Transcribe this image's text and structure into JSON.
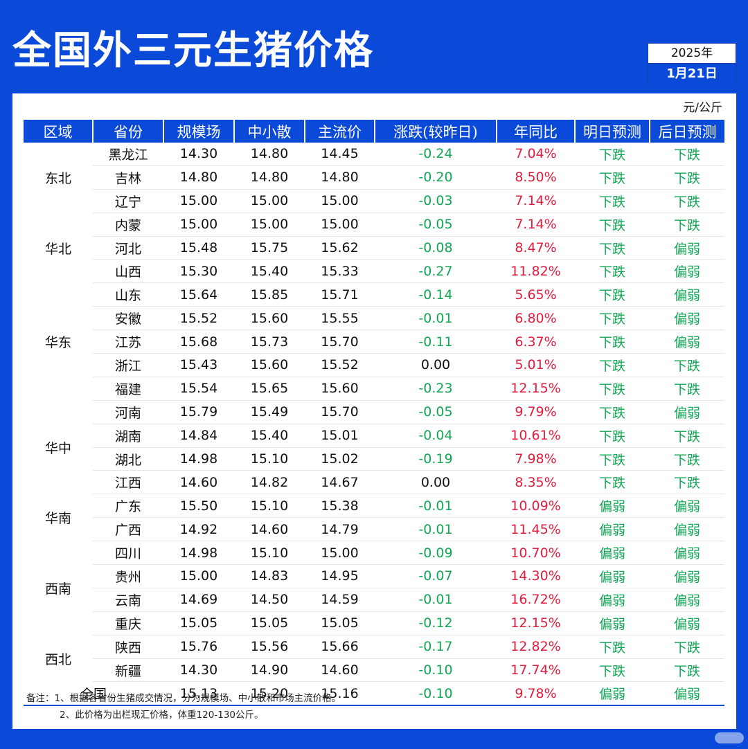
{
  "header": {
    "title": "全国外三元生猪价格",
    "date_year": "2025年",
    "date_day": "1月21日"
  },
  "unit": "元/公斤",
  "columns": [
    "区域",
    "省份",
    "规模场",
    "中小散",
    "主流价",
    "涨跌(较昨日)",
    "年同比",
    "明日预测",
    "后日预测"
  ],
  "rows": [
    {
      "region": "东北",
      "region_span": 3,
      "province": "黑龙江",
      "large": "14.30",
      "small": "14.80",
      "main": "14.45",
      "change": "-0.24",
      "yoy": "7.04%",
      "tomorrow": "下跌",
      "after": "下跌"
    },
    {
      "province": "吉林",
      "large": "14.80",
      "small": "14.80",
      "main": "14.80",
      "change": "-0.20",
      "yoy": "8.50%",
      "tomorrow": "下跌",
      "after": "下跌"
    },
    {
      "province": "辽宁",
      "large": "15.00",
      "small": "15.00",
      "main": "15.00",
      "change": "-0.03",
      "yoy": "7.14%",
      "tomorrow": "下跌",
      "after": "下跌"
    },
    {
      "region": "华北",
      "region_span": 3,
      "province": "内蒙",
      "large": "15.00",
      "small": "15.00",
      "main": "15.00",
      "change": "-0.05",
      "yoy": "7.14%",
      "tomorrow": "下跌",
      "after": "下跌"
    },
    {
      "province": "河北",
      "large": "15.48",
      "small": "15.75",
      "main": "15.62",
      "change": "-0.08",
      "yoy": "8.47%",
      "tomorrow": "下跌",
      "after": "偏弱"
    },
    {
      "province": "山西",
      "large": "15.30",
      "small": "15.40",
      "main": "15.33",
      "change": "-0.27",
      "yoy": "11.82%",
      "tomorrow": "下跌",
      "after": "偏弱"
    },
    {
      "region": "华东",
      "region_span": 5,
      "province": "山东",
      "large": "15.64",
      "small": "15.85",
      "main": "15.71",
      "change": "-0.14",
      "yoy": "5.65%",
      "tomorrow": "下跌",
      "after": "偏弱"
    },
    {
      "province": "安徽",
      "large": "15.52",
      "small": "15.60",
      "main": "15.55",
      "change": "-0.01",
      "yoy": "6.80%",
      "tomorrow": "下跌",
      "after": "偏弱"
    },
    {
      "province": "江苏",
      "large": "15.68",
      "small": "15.73",
      "main": "15.70",
      "change": "-0.11",
      "yoy": "6.37%",
      "tomorrow": "下跌",
      "after": "偏弱"
    },
    {
      "province": "浙江",
      "large": "15.43",
      "small": "15.60",
      "main": "15.52",
      "change": "0.00",
      "yoy": "5.01%",
      "tomorrow": "下跌",
      "after": "下跌"
    },
    {
      "province": "福建",
      "large": "15.54",
      "small": "15.65",
      "main": "15.60",
      "change": "-0.23",
      "yoy": "12.15%",
      "tomorrow": "下跌",
      "after": "下跌"
    },
    {
      "region": "华中",
      "region_span": 4,
      "province": "河南",
      "large": "15.79",
      "small": "15.49",
      "main": "15.70",
      "change": "-0.05",
      "yoy": "9.79%",
      "tomorrow": "下跌",
      "after": "偏弱"
    },
    {
      "province": "湖南",
      "large": "14.84",
      "small": "15.40",
      "main": "15.01",
      "change": "-0.04",
      "yoy": "10.61%",
      "tomorrow": "下跌",
      "after": "下跌"
    },
    {
      "province": "湖北",
      "large": "14.98",
      "small": "15.10",
      "main": "15.02",
      "change": "-0.19",
      "yoy": "7.98%",
      "tomorrow": "下跌",
      "after": "下跌"
    },
    {
      "province": "江西",
      "large": "14.60",
      "small": "14.82",
      "main": "14.67",
      "change": "0.00",
      "yoy": "8.35%",
      "tomorrow": "下跌",
      "after": "下跌"
    },
    {
      "region": "华南",
      "region_span": 2,
      "province": "广东",
      "large": "15.50",
      "small": "15.10",
      "main": "15.38",
      "change": "-0.01",
      "yoy": "10.09%",
      "tomorrow": "偏弱",
      "after": "偏弱"
    },
    {
      "province": "广西",
      "large": "14.92",
      "small": "14.60",
      "main": "14.79",
      "change": "-0.01",
      "yoy": "11.45%",
      "tomorrow": "偏弱",
      "after": "偏弱"
    },
    {
      "region": "西南",
      "region_span": 4,
      "province": "四川",
      "large": "14.98",
      "small": "15.10",
      "main": "15.00",
      "change": "-0.09",
      "yoy": "10.70%",
      "tomorrow": "偏弱",
      "after": "偏弱"
    },
    {
      "province": "贵州",
      "large": "15.00",
      "small": "14.83",
      "main": "14.95",
      "change": "-0.07",
      "yoy": "14.30%",
      "tomorrow": "偏弱",
      "after": "偏弱"
    },
    {
      "province": "云南",
      "large": "14.69",
      "small": "14.50",
      "main": "14.59",
      "change": "-0.01",
      "yoy": "16.72%",
      "tomorrow": "偏弱",
      "after": "偏弱"
    },
    {
      "province": "重庆",
      "large": "15.05",
      "small": "15.05",
      "main": "15.05",
      "change": "-0.12",
      "yoy": "12.15%",
      "tomorrow": "偏弱",
      "after": "偏弱"
    },
    {
      "region": "西北",
      "region_span": 2,
      "province": "陕西",
      "large": "15.76",
      "small": "15.56",
      "main": "15.66",
      "change": "-0.17",
      "yoy": "12.82%",
      "tomorrow": "下跌",
      "after": "下跌"
    },
    {
      "province": "新疆",
      "large": "14.30",
      "small": "14.90",
      "main": "14.60",
      "change": "-0.10",
      "yoy": "17.74%",
      "tomorrow": "下跌",
      "after": "下跌"
    }
  ],
  "national": {
    "label": "全国",
    "large": "15.13",
    "small": "15.20",
    "main": "15.16",
    "change": "-0.10",
    "yoy": "9.78%",
    "tomorrow": "偏弱",
    "after": "偏弱"
  },
  "notes": {
    "line1": "备注：1、根据各省份生猪成交情况，分为规模场、中小散和市场主流价格。",
    "line2": "2、此价格为出栏现汇价格，体重120-130公斤。"
  },
  "colors": {
    "brand_blue": "#0b49d9",
    "down_green": "#11a654",
    "up_red": "#e21c3d"
  }
}
